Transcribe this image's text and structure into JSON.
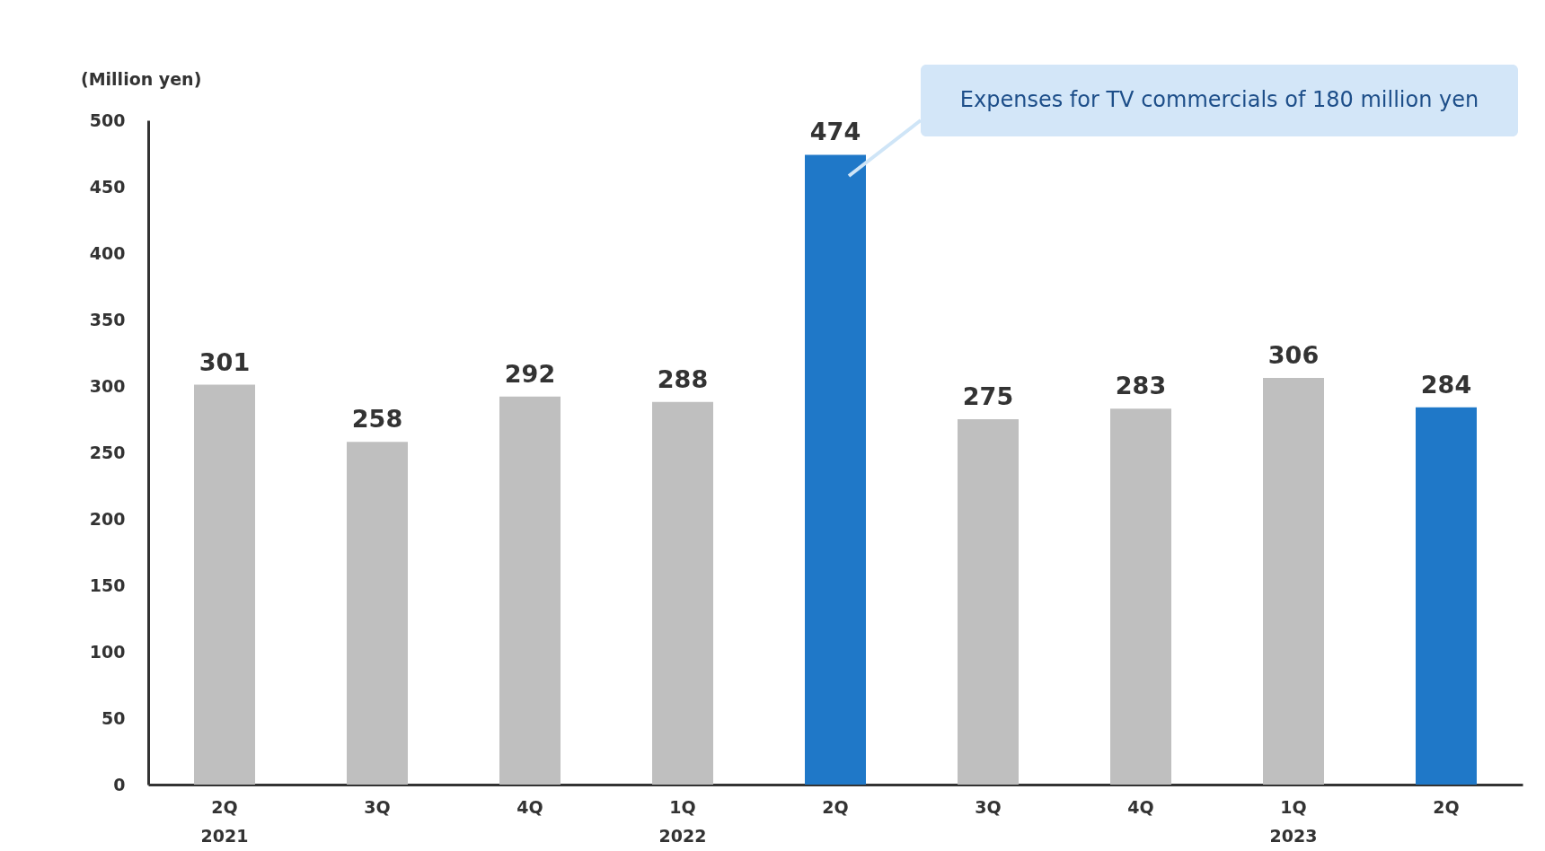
{
  "chart_data": {
    "type": "bar",
    "ylabel": "(Million yen)",
    "categories": [
      "2Q\n2021",
      "3Q",
      "4Q",
      "1Q\n2022",
      "2Q",
      "3Q",
      "4Q",
      "1Q\n2023",
      "2Q"
    ],
    "values": [
      301,
      258,
      292,
      288,
      474,
      275,
      283,
      306,
      284
    ],
    "colors": [
      "#bfbfbf",
      "#bfbfbf",
      "#bfbfbf",
      "#bfbfbf",
      "#1f78c8",
      "#bfbfbf",
      "#bfbfbf",
      "#bfbfbf",
      "#1f78c8"
    ],
    "ylim": [
      0,
      500
    ],
    "yticks": [
      0,
      50,
      100,
      150,
      200,
      250,
      300,
      350,
      400,
      450,
      500
    ],
    "data_labels": true,
    "grid": false,
    "legend": false,
    "annotations": [
      "Expenses for TV commercials of 180 million yen"
    ]
  }
}
